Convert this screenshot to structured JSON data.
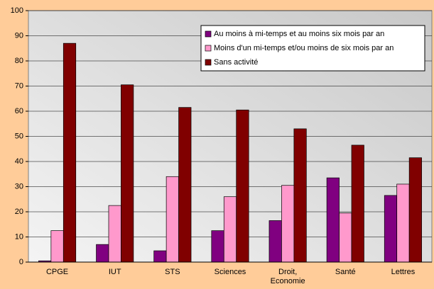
{
  "chart_data": {
    "type": "bar",
    "categories": [
      "CPGE",
      "IUT",
      "STS",
      "Sciences",
      "Droit,\nEconomie",
      "Santé",
      "Lettres"
    ],
    "series": [
      {
        "name": "Au moins à mi-temps et au moins six mois par an",
        "color": "#800080",
        "values": [
          0.5,
          7,
          4.5,
          12.5,
          16.5,
          33.5,
          26.5
        ]
      },
      {
        "name": "Moins d'un mi-temps et/ou moins de six mois par an",
        "color": "#ff99cc",
        "values": [
          12.5,
          22.5,
          34,
          26,
          30.5,
          19.5,
          31
        ]
      },
      {
        "name": "Sans activité",
        "color": "#800000",
        "values": [
          87,
          70.5,
          61.5,
          60.5,
          53,
          46.5,
          41.5
        ]
      }
    ],
    "ylim": [
      0,
      100
    ],
    "yticks": [
      0,
      10,
      20,
      30,
      40,
      50,
      60,
      70,
      80,
      90,
      100
    ],
    "grid": true,
    "legend": "top-right"
  }
}
